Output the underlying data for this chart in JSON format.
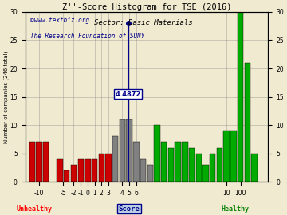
{
  "title": "Z''-Score Histogram for TSE (2016)",
  "subtitle": "Sector: Basic Materials",
  "watermark1": "©www.textbiz.org",
  "watermark2": "The Research Foundation of SUNY",
  "xlabel_center": "Score",
  "xlabel_left": "Unhealthy",
  "xlabel_right": "Healthy",
  "ylabel": "Number of companies (246 total)",
  "marker_label": "4.4872",
  "marker_value_idx": 19,
  "background_color": "#f0ead0",
  "ylim": [
    0,
    30
  ],
  "yticks": [
    0,
    5,
    10,
    15,
    20,
    25,
    30
  ],
  "bar_heights": [
    7,
    7,
    7,
    4,
    2,
    3,
    4,
    4,
    4,
    5,
    5,
    8,
    11,
    11,
    7,
    4,
    3,
    10,
    7,
    6,
    7,
    7,
    6,
    5,
    3,
    5,
    6,
    9,
    9,
    30,
    21,
    5
  ],
  "bar_colors": [
    "#cc0000",
    "#cc0000",
    "#cc0000",
    "#cc0000",
    "#cc0000",
    "#cc0000",
    "#cc0000",
    "#cc0000",
    "#cc0000",
    "#cc0000",
    "#cc0000",
    "#808080",
    "#808080",
    "#808080",
    "#808080",
    "#808080",
    "#808080",
    "#00aa00",
    "#00aa00",
    "#00aa00",
    "#00aa00",
    "#00aa00",
    "#00aa00",
    "#00aa00",
    "#00aa00",
    "#00aa00",
    "#00aa00",
    "#00aa00",
    "#00aa00",
    "#00aa00",
    "#00aa00",
    "#00aa00"
  ],
  "xtick_positions": [
    0,
    3,
    7,
    8,
    9,
    10,
    11,
    12,
    13,
    14,
    15,
    16,
    29,
    30,
    31
  ],
  "xtick_labels": [
    "-10",
    "-5",
    "-2",
    "-1",
    "0",
    "1",
    "2",
    "3",
    "4",
    "5",
    "6",
    "10",
    "100"
  ],
  "xtick_label_positions": [
    1,
    4,
    7,
    8,
    9,
    10,
    11,
    12,
    13,
    14,
    15,
    29,
    30
  ]
}
